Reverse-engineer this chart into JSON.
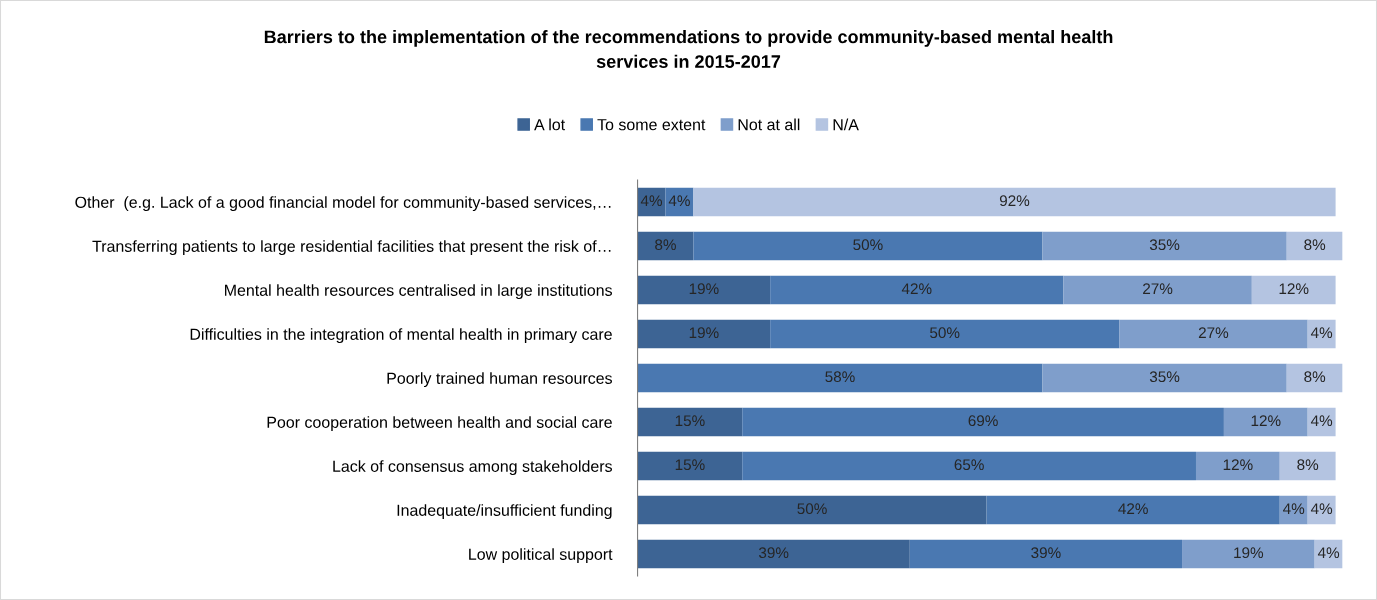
{
  "chart_data": {
    "type": "bar",
    "orientation": "horizontal",
    "stacked": true,
    "title": "Barriers to the implementation of the recommendations to provide community-based mental health\nservices in 2015-2017",
    "legend": "top",
    "grid": false,
    "categories": [
      "Other  (e.g. Lack of a good financial model for community-based services,…",
      "Transferring patients to large residential facilities that present the risk of…",
      "Mental health resources centralised in large institutions",
      "Difficulties in the integration of mental health in primary care",
      "Poorly trained human resources",
      "Poor cooperation between health and social care",
      "Lack of consensus among stakeholders",
      "Inadequate/insufficient funding",
      "Low political support"
    ],
    "series": [
      {
        "name": "A lot",
        "color": "#3d6494",
        "values": [
          4,
          8,
          19,
          19,
          null,
          15,
          15,
          50,
          39
        ],
        "value_labels": [
          "4%",
          "8%",
          "19%",
          "19%",
          null,
          "15%",
          "15%",
          "50%",
          "39%"
        ]
      },
      {
        "name": "To some extent",
        "color": "#4a78b1",
        "values": [
          4,
          50,
          42,
          50,
          58,
          69,
          65,
          42,
          39
        ],
        "value_labels": [
          "4%",
          "50%",
          "42%",
          "50%",
          "58%",
          "69%",
          "65%",
          "42%",
          "39%"
        ]
      },
      {
        "name": "Not at all",
        "color": "#7f9ecb",
        "values": [
          null,
          35,
          27,
          27,
          35,
          12,
          12,
          4,
          19
        ],
        "value_labels": [
          null,
          "35%",
          "27%",
          "27%",
          "35%",
          "12%",
          "12%",
          "4%",
          "19%"
        ]
      },
      {
        "name": "N/A",
        "color": "#b4c4e1",
        "values": [
          92,
          8,
          12,
          4,
          8,
          4,
          8,
          4,
          4
        ],
        "value_labels": [
          "92%",
          "8%",
          "12%",
          "4%",
          "8%",
          "4%",
          "8%",
          "4%",
          "4%"
        ]
      }
    ]
  }
}
